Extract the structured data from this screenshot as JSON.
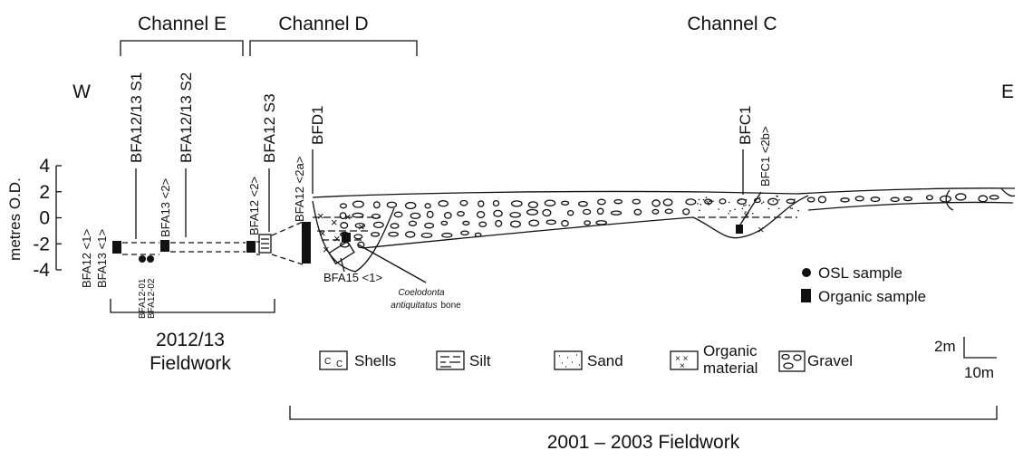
{
  "channels": [
    "Channel E",
    "Channel D",
    "Channel C"
  ],
  "directions": {
    "west": "W",
    "east": "E"
  },
  "axis": {
    "label": "metres O.D.",
    "ticks": [
      4,
      2,
      0,
      -2,
      -4
    ]
  },
  "cores": [
    "BFA12 <1>",
    "BFA13 <1>",
    "BFA12/13 S1",
    "BFA12-01",
    "BFA12-02",
    "BFA13 <2>",
    "BFA12/13 S2",
    "BFA12 <2>",
    "BFA12 S3",
    "BFA12 <2a>",
    "BFD1",
    "BFC1",
    "BFC1 <2b>",
    "BFA15 <1>"
  ],
  "fossil": {
    "genus": "Coelodonta",
    "species": "antiquitatus",
    "suffix": "bone"
  },
  "legend": {
    "osl": "OSL sample",
    "organic": "Organic sample"
  },
  "fieldwork": {
    "recent": [
      "2012/13",
      "Fieldwork"
    ],
    "earlier": "2001 – 2003 Fieldwork"
  },
  "key": {
    "shells": "Shells",
    "silt": "Silt",
    "sand": "Sand",
    "organic": [
      "Organic",
      "material"
    ],
    "gravel": "Gravel"
  },
  "scale": {
    "vertical": "2m",
    "horizontal": "10m"
  }
}
